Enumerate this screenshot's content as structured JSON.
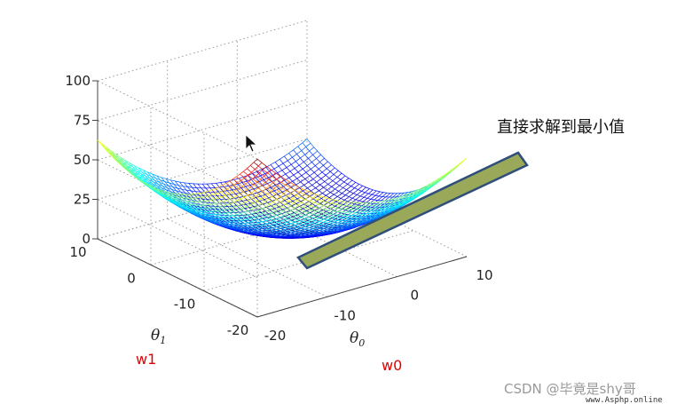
{
  "chart_data": {
    "type": "surface",
    "function": "theta0^2/8 + theta1^2/8",
    "x_axis": {
      "symbol": "θ",
      "subscript": "0",
      "red_label": "w0",
      "ticks": [
        -20,
        -10,
        0,
        10
      ],
      "range": [
        -20,
        10
      ]
    },
    "y_axis": {
      "symbol": "θ",
      "subscript": "1",
      "red_label": "w1",
      "ticks": [
        -20,
        -10,
        0,
        10
      ],
      "range": [
        -20,
        10
      ]
    },
    "z_axis": {
      "ticks": [
        "0",
        "25",
        "50",
        "75",
        "100"
      ],
      "range": [
        0,
        100
      ]
    },
    "grid": true,
    "colormap": "jet",
    "annotation": "直接求解到最小值",
    "watermark": {
      "main": "CSDN @毕竟是shy哥",
      "small": "www.Asphp.online"
    }
  }
}
